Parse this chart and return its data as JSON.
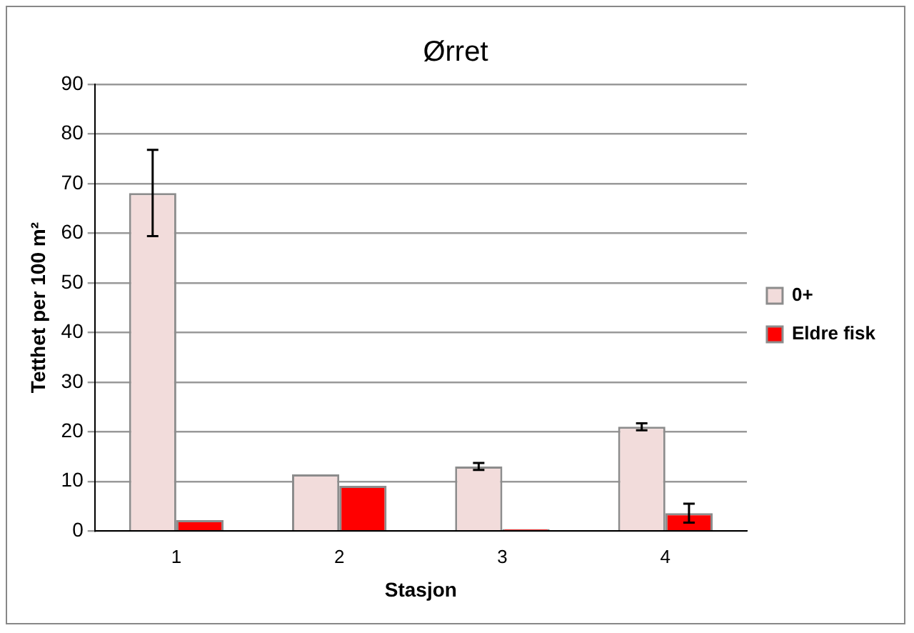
{
  "chart_data": {
    "type": "bar",
    "title": "Ørret",
    "xlabel": "Stasjon",
    "ylabel": "Tetthet per 100 m²",
    "categories": [
      "1",
      "2",
      "3",
      "4"
    ],
    "series": [
      {
        "name": "0+",
        "color": "#f2dcdb",
        "values": [
          68.1,
          11.4,
          13.0,
          21.0
        ],
        "errors": [
          8.7,
          null,
          0.7,
          0.7
        ]
      },
      {
        "name": "Eldre fisk",
        "color": "#ff0000",
        "values": [
          2.2,
          9.1,
          0.4,
          3.6
        ],
        "errors": [
          null,
          null,
          null,
          1.9
        ]
      }
    ],
    "ylim": [
      0,
      90
    ],
    "yticks": [
      0,
      10,
      20,
      30,
      40,
      50,
      60,
      70,
      80,
      90
    ],
    "grid": "y",
    "legend": "right"
  }
}
